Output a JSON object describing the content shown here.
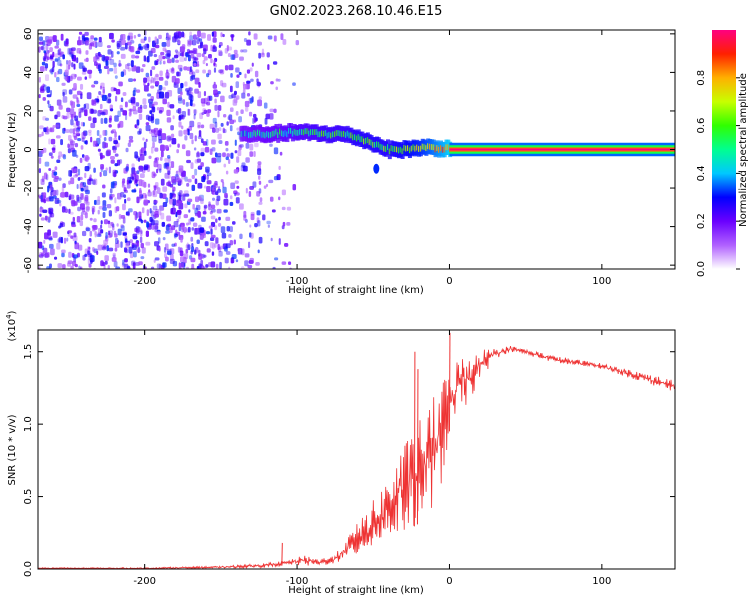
{
  "figure": {
    "title": "GN02.2023.268.10.46.E15"
  },
  "colors": {
    "snr_line": "#ee3333",
    "band": "#ee2222",
    "noise": "#7a2cf0",
    "frame": "#000000"
  },
  "chart_data": [
    {
      "type": "heatmap",
      "name": "spectrogram",
      "xlabel": "Height of straight line (km)",
      "ylabel": "Frequency (Hz)",
      "xlim": [
        -270,
        148
      ],
      "ylim": [
        -62,
        62
      ],
      "x_ticks": [
        -200,
        -100,
        0,
        100
      ],
      "y_ticks": [
        -60,
        -40,
        -20,
        0,
        20,
        40,
        60
      ],
      "colorbar": {
        "label": "Normalized spectral amplitude",
        "range": [
          0,
          1
        ],
        "ticks": [
          "0.0",
          "0.2",
          "0.4",
          "0.6",
          "0.8"
        ],
        "tick_values": [
          0.0,
          0.2,
          0.4,
          0.6,
          0.8
        ],
        "colormap": [
          "#ffffff",
          "#b060ff",
          "#6a00ff",
          "#0000ff",
          "#00c8ff",
          "#00ff90",
          "#30ff00",
          "#c8ff00",
          "#ffb000",
          "#ff2000",
          "#ff0080"
        ]
      },
      "features": {
        "noise_region_x": [
          -270,
          -95
        ],
        "signal_track": {
          "x": [
            -137,
            -120,
            -100,
            -80,
            -70,
            -60,
            -50,
            -40,
            -30,
            -20,
            -10,
            0,
            148
          ],
          "freq_hz": [
            8,
            8,
            9,
            8,
            8,
            6,
            3,
            0,
            0,
            1,
            1,
            0,
            0
          ],
          "amplitude": [
            0.4,
            0.45,
            0.5,
            0.55,
            0.55,
            0.6,
            0.6,
            0.6,
            0.65,
            0.7,
            0.8,
            0.9,
            1.0
          ]
        },
        "noise_level": 0.25
      }
    },
    {
      "type": "line",
      "name": "snr",
      "xlabel": "Height of straight line (km)",
      "ylabel": "SNR (10 * v/v)",
      "scale_label_prefix": "(x10",
      "scale_label_exp": "4",
      "scale_label_suffix": ")",
      "xlim": [
        -270,
        148
      ],
      "ylim": [
        0,
        1.65
      ],
      "x_ticks": [
        -200,
        -100,
        0,
        100
      ],
      "y_ticks": [
        "0.0",
        "0.5",
        "1.0",
        "1.5"
      ],
      "y_tick_values": [
        0.0,
        0.5,
        1.0,
        1.5
      ],
      "envelope": {
        "x": [
          -270,
          -200,
          -150,
          -120,
          -105,
          -95,
          -85,
          -75,
          -65,
          -55,
          -45,
          -35,
          -25,
          -15,
          -5,
          0,
          10,
          20,
          30,
          40,
          50,
          70,
          100,
          130,
          148
        ],
        "low": [
          0.0,
          0.0,
          0.005,
          0.01,
          0.03,
          0.02,
          0.02,
          0.04,
          0.07,
          0.12,
          0.18,
          0.22,
          0.28,
          0.35,
          0.55,
          0.95,
          1.1,
          1.3,
          1.45,
          1.5,
          1.48,
          1.42,
          1.38,
          1.28,
          1.22
        ],
        "high": [
          0.01,
          0.01,
          0.02,
          0.04,
          0.06,
          0.1,
          0.07,
          0.1,
          0.25,
          0.4,
          0.55,
          0.75,
          0.95,
          1.1,
          1.3,
          1.4,
          1.5,
          1.52,
          1.53,
          1.54,
          1.52,
          1.47,
          1.42,
          1.35,
          1.3
        ]
      },
      "peaks": [
        {
          "x": -23,
          "y": 1.5
        },
        {
          "x": -21,
          "y": 1.38
        },
        {
          "x": 0,
          "y": 1.63
        },
        {
          "x": -110,
          "y": 0.18
        }
      ]
    }
  ]
}
